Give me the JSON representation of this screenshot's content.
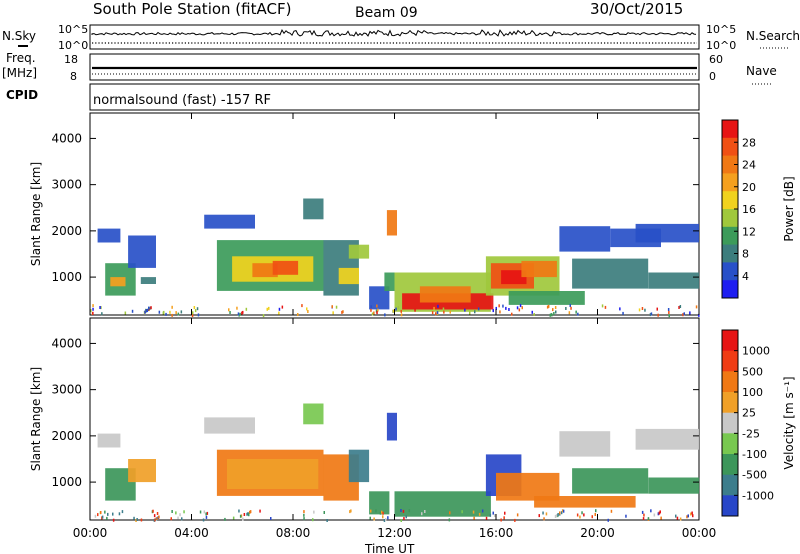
{
  "header": {
    "station": "South Pole Station (fitACF)",
    "beam": "Beam 09",
    "date": "30/Oct/2015",
    "cpid_text": "normalsound (fast) -157 RF"
  },
  "left_labels": {
    "nsky": "N.Sky",
    "freq1": "Freq.",
    "freq2": "[MHz]",
    "cpid": "CPID"
  },
  "right_labels": {
    "nsearch": "N.Search",
    "nave": "Nave"
  },
  "small_axes": {
    "sky_top": "10^5",
    "sky_bottom": "10^0",
    "freq_top": "18",
    "freq_bottom": "8",
    "search_top": "10^5",
    "search_bottom": "10^0",
    "nave_top": "60",
    "nave_bottom": "0"
  },
  "chart_data": [
    {
      "type": "heatmap",
      "name": "power",
      "ylabel": "Slant Range [km]",
      "xlabel": "",
      "x_ticks": [
        "00:00",
        "04:00",
        "08:00",
        "12:00",
        "16:00",
        "20:00",
        "00:00"
      ],
      "x_range_hours": [
        0,
        24
      ],
      "y_ticks": [
        1000,
        2000,
        3000,
        4000
      ],
      "y_range_km": [
        180,
        4550
      ],
      "colorbar_label": "Power [dB]",
      "colorbar_ticks": [
        "4",
        "8",
        "12",
        "16",
        "20",
        "24",
        "28"
      ],
      "colorbar_colors": [
        "#1e1ef0",
        "#2850c8",
        "#3c7d7d",
        "#3c9b5a",
        "#a0c83c",
        "#f0d21e",
        "#f5a01e",
        "#f07814",
        "#f05014",
        "#e61414"
      ],
      "regions": [
        {
          "t0": 0.3,
          "t1": 1.2,
          "r0": 1750,
          "r1": 2050,
          "level": 1
        },
        {
          "t0": 0.6,
          "t1": 1.8,
          "r0": 600,
          "r1": 1300,
          "level": 3
        },
        {
          "t0": 0.8,
          "t1": 1.4,
          "r0": 800,
          "r1": 1000,
          "level": 6
        },
        {
          "t0": 1.5,
          "t1": 2.6,
          "r0": 1200,
          "r1": 1900,
          "level": 1
        },
        {
          "t0": 2.0,
          "t1": 2.6,
          "r0": 850,
          "r1": 1000,
          "level": 2
        },
        {
          "t0": 4.5,
          "t1": 6.5,
          "r0": 2050,
          "r1": 2350,
          "level": 1
        },
        {
          "t0": 5.0,
          "t1": 9.2,
          "r0": 700,
          "r1": 1800,
          "level": 3
        },
        {
          "t0": 5.6,
          "t1": 8.8,
          "r0": 900,
          "r1": 1450,
          "level": 5
        },
        {
          "t0": 6.4,
          "t1": 7.4,
          "r0": 1000,
          "r1": 1300,
          "level": 7
        },
        {
          "t0": 7.2,
          "t1": 8.2,
          "r0": 1050,
          "r1": 1350,
          "level": 8
        },
        {
          "t0": 8.4,
          "t1": 9.2,
          "r0": 2250,
          "r1": 2700,
          "level": 2
        },
        {
          "t0": 9.2,
          "t1": 10.6,
          "r0": 600,
          "r1": 1800,
          "level": 2
        },
        {
          "t0": 9.8,
          "t1": 10.6,
          "r0": 850,
          "r1": 1200,
          "level": 5
        },
        {
          "t0": 10.2,
          "t1": 11.0,
          "r0": 1400,
          "r1": 1700,
          "level": 4
        },
        {
          "t0": 11.0,
          "t1": 11.8,
          "r0": 300,
          "r1": 800,
          "level": 1
        },
        {
          "t0": 11.7,
          "t1": 12.1,
          "r0": 1900,
          "r1": 2450,
          "level": 7
        },
        {
          "t0": 11.6,
          "t1": 12.0,
          "r0": 700,
          "r1": 1100,
          "level": 3
        },
        {
          "t0": 12.0,
          "t1": 15.8,
          "r0": 250,
          "r1": 1100,
          "level": 4
        },
        {
          "t0": 12.3,
          "t1": 15.9,
          "r0": 300,
          "r1": 650,
          "level": 9
        },
        {
          "t0": 13.0,
          "t1": 15.0,
          "r0": 450,
          "r1": 800,
          "level": 7
        },
        {
          "t0": 15.6,
          "t1": 18.5,
          "r0": 600,
          "r1": 1450,
          "level": 4
        },
        {
          "t0": 15.8,
          "t1": 17.5,
          "r0": 750,
          "r1": 1300,
          "level": 8
        },
        {
          "t0": 16.2,
          "t1": 17.2,
          "r0": 850,
          "r1": 1150,
          "level": 9
        },
        {
          "t0": 17.0,
          "t1": 18.4,
          "r0": 1000,
          "r1": 1350,
          "level": 7
        },
        {
          "t0": 16.5,
          "t1": 19.5,
          "r0": 400,
          "r1": 700,
          "level": 3
        },
        {
          "t0": 18.5,
          "t1": 20.5,
          "r0": 1550,
          "r1": 2100,
          "level": 1
        },
        {
          "t0": 19.0,
          "t1": 22.0,
          "r0": 750,
          "r1": 1400,
          "level": 2
        },
        {
          "t0": 20.5,
          "t1": 22.5,
          "r0": 1650,
          "r1": 2050,
          "level": 1
        },
        {
          "t0": 21.5,
          "t1": 24.0,
          "r0": 1750,
          "r1": 2150,
          "level": 1
        },
        {
          "t0": 22.0,
          "t1": 24.0,
          "r0": 750,
          "r1": 1100,
          "level": 2
        }
      ]
    },
    {
      "type": "heatmap",
      "name": "velocity",
      "ylabel": "Slant Range [km]",
      "xlabel": "Time UT",
      "x_ticks": [
        "00:00",
        "04:00",
        "08:00",
        "12:00",
        "16:00",
        "20:00",
        "00:00"
      ],
      "x_range_hours": [
        0,
        24
      ],
      "y_ticks": [
        1000,
        2000,
        3000,
        4000
      ],
      "y_range_km": [
        180,
        4550
      ],
      "colorbar_label": "Velocity [m s⁻¹]",
      "colorbar_ticks": [
        "1000",
        "500",
        "100",
        "25",
        "-25",
        "-100",
        "-500",
        "-1000"
      ],
      "colorbar_colors": [
        "#2846c8",
        "#3c7d8c",
        "#3c965a",
        "#78c850",
        "#c8c8c8",
        "#f0a028",
        "#f07814",
        "#f03c14",
        "#e61414"
      ],
      "regions": [
        {
          "t0": 0.3,
          "t1": 1.2,
          "r0": 1750,
          "r1": 2050,
          "level": 4
        },
        {
          "t0": 0.6,
          "t1": 1.8,
          "r0": 600,
          "r1": 1300,
          "level": 2
        },
        {
          "t0": 1.5,
          "t1": 2.6,
          "r0": 1000,
          "r1": 1500,
          "level": 5
        },
        {
          "t0": 4.5,
          "t1": 6.5,
          "r0": 2050,
          "r1": 2400,
          "level": 4
        },
        {
          "t0": 5.0,
          "t1": 9.2,
          "r0": 700,
          "r1": 1700,
          "level": 6
        },
        {
          "t0": 5.4,
          "t1": 9.0,
          "r0": 850,
          "r1": 1500,
          "level": 5
        },
        {
          "t0": 8.4,
          "t1": 9.2,
          "r0": 2250,
          "r1": 2700,
          "level": 3
        },
        {
          "t0": 9.2,
          "t1": 10.6,
          "r0": 600,
          "r1": 1600,
          "level": 6
        },
        {
          "t0": 10.2,
          "t1": 11.0,
          "r0": 1000,
          "r1": 1700,
          "level": 1
        },
        {
          "t0": 11.0,
          "t1": 11.8,
          "r0": 300,
          "r1": 800,
          "level": 2
        },
        {
          "t0": 11.7,
          "t1": 12.1,
          "r0": 1900,
          "r1": 2500,
          "level": 0
        },
        {
          "t0": 12.0,
          "t1": 15.8,
          "r0": 250,
          "r1": 800,
          "level": 2
        },
        {
          "t0": 15.6,
          "t1": 17.0,
          "r0": 700,
          "r1": 1600,
          "level": 0
        },
        {
          "t0": 16.0,
          "t1": 18.5,
          "r0": 600,
          "r1": 1200,
          "level": 6
        },
        {
          "t0": 17.5,
          "t1": 21.5,
          "r0": 450,
          "r1": 700,
          "level": 6
        },
        {
          "t0": 18.5,
          "t1": 20.5,
          "r0": 1550,
          "r1": 2100,
          "level": 4
        },
        {
          "t0": 19.0,
          "t1": 22.0,
          "r0": 750,
          "r1": 1300,
          "level": 2
        },
        {
          "t0": 21.5,
          "t1": 24.0,
          "r0": 1700,
          "r1": 2150,
          "level": 4
        },
        {
          "t0": 22.0,
          "t1": 24.0,
          "r0": 750,
          "r1": 1100,
          "level": 2
        }
      ]
    }
  ]
}
